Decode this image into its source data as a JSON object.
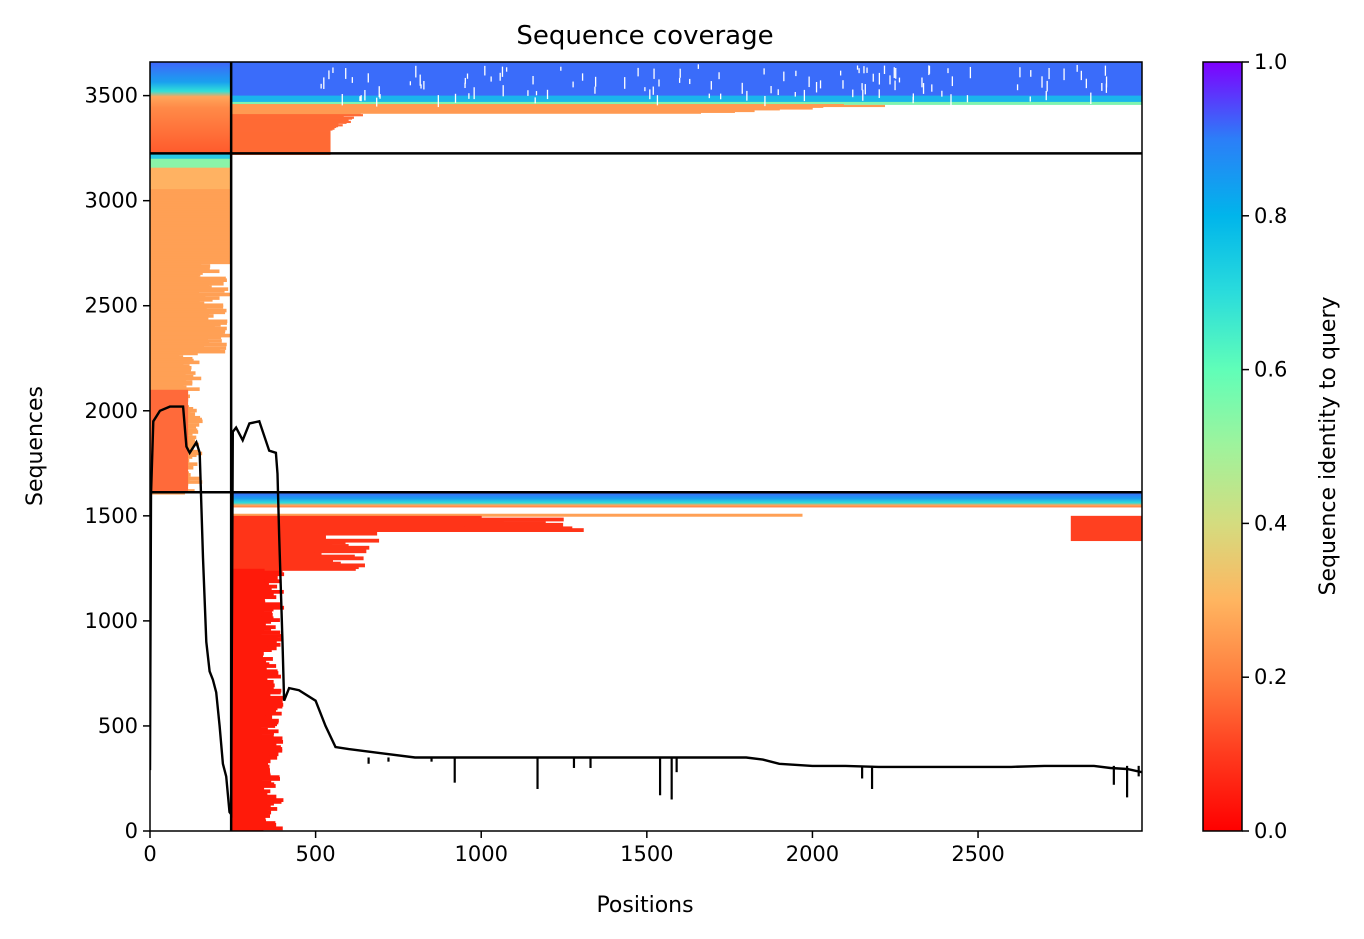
{
  "chart_data": {
    "type": "heatmap",
    "title": "Sequence coverage",
    "xlabel": "Positions",
    "ylabel": "Sequences",
    "xlim": [
      0,
      2995
    ],
    "ylim": [
      0,
      3660
    ],
    "x_ticks": [
      0,
      500,
      1000,
      1500,
      2000,
      2500
    ],
    "y_ticks": [
      0,
      500,
      1000,
      1500,
      2000,
      2500,
      3000,
      3500
    ],
    "colorbar": {
      "label": "Sequence identity to query",
      "range": [
        0,
        1
      ],
      "ticks": [
        "0.0",
        "0.2",
        "0.4",
        "0.6",
        "0.8",
        "1.0"
      ],
      "colormap": "rainbow",
      "colors": [
        "#ff0000",
        "#ff7f3f",
        "#ffb560",
        "#d4dc7f",
        "#80feb3",
        "#2adcdc",
        "#00b5eb",
        "#2c7ef8",
        "#4d4dff",
        "#7f00ff"
      ]
    },
    "chain_boundaries": {
      "vertical_x": [
        245
      ],
      "horizontal_y": [
        1612,
        3225
      ]
    },
    "coverage_blocks": [
      {
        "x0": 0,
        "x1": 245,
        "y0": 1612,
        "y1": 3225,
        "identity": "mixed, mostly 0.2"
      },
      {
        "x0": 0,
        "x1": 245,
        "y0": 3225,
        "y1": 3660,
        "identity": "mixed, 0.1-0.9"
      },
      {
        "x0": 245,
        "x1": 2995,
        "y0": 3225,
        "y1": 3660,
        "identity": "mixed, 0.1-0.9"
      },
      {
        "x0": 245,
        "x1": 2995,
        "y0": 0,
        "y1": 1612,
        "identity": "mixed, 0.0-0.9"
      }
    ],
    "coverage_line": {
      "color": "#000000",
      "x": [
        0,
        3,
        10,
        30,
        60,
        100,
        110,
        120,
        140,
        150,
        160,
        170,
        180,
        190,
        200,
        210,
        220,
        230,
        240,
        245,
        250,
        260,
        280,
        300,
        330,
        360,
        380,
        385,
        390,
        400,
        405,
        420,
        450,
        500,
        530,
        560,
        600,
        700,
        800,
        900,
        1000,
        1100,
        1200,
        1300,
        1400,
        1500,
        1600,
        1700,
        1800,
        1850,
        1900,
        2000,
        2100,
        2200,
        2300,
        2400,
        2500,
        2600,
        2700,
        2800,
        2850,
        2900,
        2950,
        2995
      ],
      "y": [
        290,
        1600,
        1950,
        2000,
        2020,
        2020,
        1830,
        1800,
        1850,
        1800,
        1300,
        900,
        760,
        720,
        660,
        500,
        320,
        260,
        90,
        80,
        1900,
        1920,
        1860,
        1940,
        1950,
        1810,
        1800,
        1700,
        1400,
        900,
        620,
        680,
        670,
        620,
        500,
        400,
        390,
        370,
        350,
        350,
        350,
        350,
        350,
        350,
        350,
        350,
        350,
        350,
        350,
        340,
        320,
        310,
        310,
        305,
        305,
        305,
        305,
        305,
        310,
        310,
        310,
        300,
        295,
        280
      ]
    }
  }
}
